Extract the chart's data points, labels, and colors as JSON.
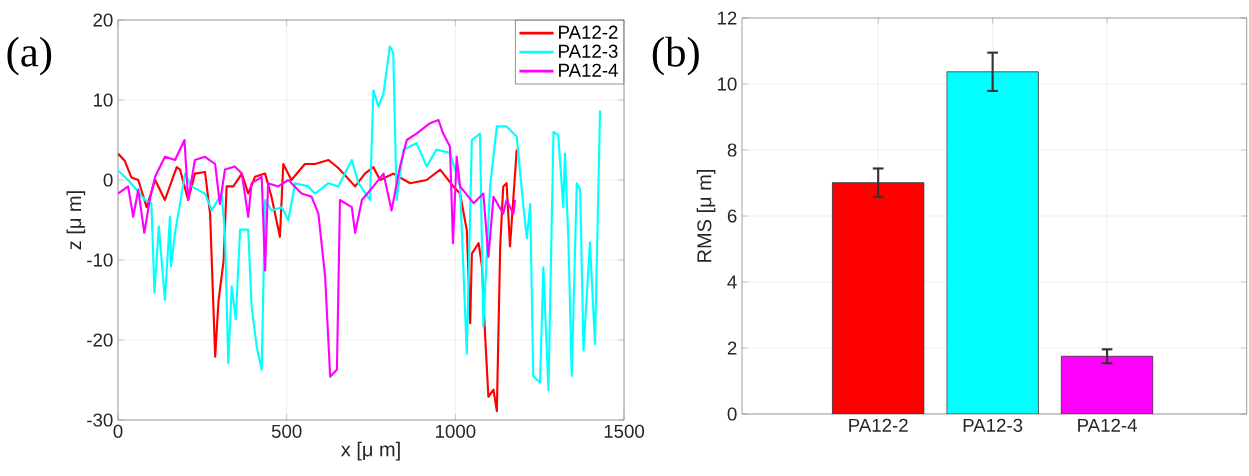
{
  "chart_data": [
    {
      "type": "line",
      "xlabel": "x [μ m]",
      "ylabel": "z [μ m]",
      "xlim": [
        0,
        1500
      ],
      "ylim": [
        -30,
        20
      ],
      "xticks": [
        0,
        500,
        1000,
        1500
      ],
      "yticks": [
        -30,
        -20,
        -10,
        0,
        10,
        20
      ],
      "grid": true,
      "legend": "top right",
      "annotations": [
        "(a)"
      ],
      "series": [
        {
          "name": "PA12-2",
          "color": "#ff0000",
          "x": [
            0,
            20,
            40,
            60,
            85,
            110,
            139,
            174,
            184,
            208,
            228,
            258,
            273,
            288,
            298,
            313,
            322,
            342,
            367,
            386,
            406,
            436,
            455,
            480,
            490,
            514,
            554,
            584,
            624,
            653,
            703,
            732,
            757,
            777,
            816,
            866,
            915,
            955,
            994,
            1014,
            1034,
            1044,
            1049,
            1069,
            1079,
            1088,
            1098,
            1113,
            1123,
            1133,
            1142,
            1152,
            1162,
            1182
          ],
          "values": [
            3.3,
            2.4,
            0.3,
            0,
            -3.4,
            0,
            -2.5,
            1.6,
            1.3,
            -2.5,
            0.8,
            1.0,
            -4.2,
            -22.1,
            -15.1,
            -10.1,
            -0.8,
            -0.8,
            0.8,
            -1.7,
            0.4,
            0.8,
            -2.1,
            -7.1,
            2.0,
            0,
            2.0,
            2.0,
            2.5,
            1.5,
            -0.8,
            0.8,
            1.6,
            0,
            0.8,
            -0.4,
            0,
            1.3,
            -0.8,
            -1.7,
            -6.3,
            -17.9,
            -9.2,
            -7.9,
            -10.8,
            -19.2,
            -27.1,
            -26.2,
            -28.9,
            -8.3,
            -0.8,
            -0.4,
            -8.3,
            3.8
          ]
        },
        {
          "name": "PA12-3",
          "color": "#00ffff",
          "x": [
            0,
            30,
            80,
            99,
            108,
            121,
            139,
            154,
            157,
            169,
            199,
            218,
            258,
            278,
            307,
            317,
            327,
            337,
            349,
            362,
            386,
            396,
            411,
            426,
            436,
            455,
            485,
            505,
            525,
            564,
            584,
            624,
            653,
            693,
            713,
            747,
            757,
            772,
            787,
            806,
            816,
            826,
            846,
            885,
            915,
            944,
            984,
            1014,
            1034,
            1049,
            1073,
            1083,
            1103,
            1123,
            1152,
            1182,
            1202,
            1212,
            1222,
            1231,
            1251,
            1261,
            1276,
            1291,
            1305,
            1320,
            1325,
            1335,
            1345,
            1360,
            1370,
            1380,
            1390,
            1399,
            1414,
            1429
          ],
          "values": [
            1.2,
            0,
            -2.5,
            -2.9,
            -14.1,
            -5.8,
            -15,
            -4.6,
            -10.8,
            -6.6,
            0.8,
            -0.8,
            -1.7,
            -3.8,
            -1.7,
            -6.6,
            -22.9,
            -13.3,
            -17.4,
            -6.2,
            -6.2,
            -15.8,
            -20.8,
            -23.7,
            -2.5,
            -3.8,
            -3.4,
            -5,
            -0.4,
            -0.8,
            -1.7,
            -0.4,
            -0.8,
            2.5,
            -0.4,
            -2.5,
            11.2,
            9.2,
            10.8,
            16.7,
            15.9,
            -2.5,
            3.8,
            4.6,
            1.7,
            3.8,
            3.4,
            -0.8,
            -21.7,
            5.0,
            5.8,
            -18.3,
            -0.8,
            6.7,
            6.7,
            5.4,
            -3.4,
            -7.3,
            -3.0,
            -24.5,
            -25.3,
            -10.9,
            -26.3,
            6.0,
            5.6,
            -3.4,
            3.3,
            -7.3,
            -24.5,
            -0.4,
            -1.2,
            -21.3,
            -14.2,
            -7.8,
            -20.5,
            8.7
          ]
        },
        {
          "name": "PA12-4",
          "color": "#ff00ff",
          "x": [
            0,
            30,
            45,
            60,
            78,
            94,
            110,
            139,
            169,
            197,
            208,
            228,
            258,
            288,
            302,
            317,
            346,
            367,
            386,
            396,
            426,
            436,
            445,
            475,
            505,
            544,
            574,
            594,
            614,
            629,
            649,
            658,
            693,
            703,
            723,
            757,
            787,
            811,
            836,
            856,
            885,
            925,
            950,
            964,
            984,
            993,
            1004,
            1014,
            1054,
            1083,
            1098,
            1113,
            1142,
            1152,
            1172,
            1177
          ],
          "values": [
            -1.7,
            -0.8,
            -4.6,
            -1.2,
            -6.6,
            -2.5,
            0.4,
            2.9,
            2.5,
            5.0,
            -2.5,
            2.5,
            2.9,
            2.0,
            -3.0,
            1.3,
            1.7,
            0.8,
            -4.6,
            -0.4,
            0.4,
            -11.3,
            -0.4,
            -0.8,
            0,
            -1.7,
            -2.1,
            -4.2,
            -12.1,
            -24.6,
            -23.7,
            -2.5,
            -3.4,
            -6.6,
            -2.5,
            -0.8,
            0.8,
            -3.8,
            1.7,
            5.0,
            5.8,
            7.1,
            7.5,
            5.8,
            4.2,
            -7.9,
            2.9,
            -0.8,
            -2.9,
            -1.7,
            -9.6,
            -2.1,
            -4.2,
            -2.5,
            -4.2,
            -2.5
          ]
        }
      ]
    },
    {
      "type": "bar",
      "ylabel": "RMS [μ m]",
      "categories": [
        "PA12-2",
        "PA12-3",
        "PA12-4"
      ],
      "values": [
        7.01,
        10.37,
        1.75
      ],
      "errors": [
        0.43,
        0.58,
        0.21
      ],
      "colors": [
        "#ff0000",
        "#00ffff",
        "#ff00ff"
      ],
      "ylim": [
        0,
        12
      ],
      "yticks": [
        0,
        2,
        4,
        6,
        8,
        10,
        12
      ],
      "grid": true,
      "annotations": [
        "(b)"
      ]
    }
  ]
}
